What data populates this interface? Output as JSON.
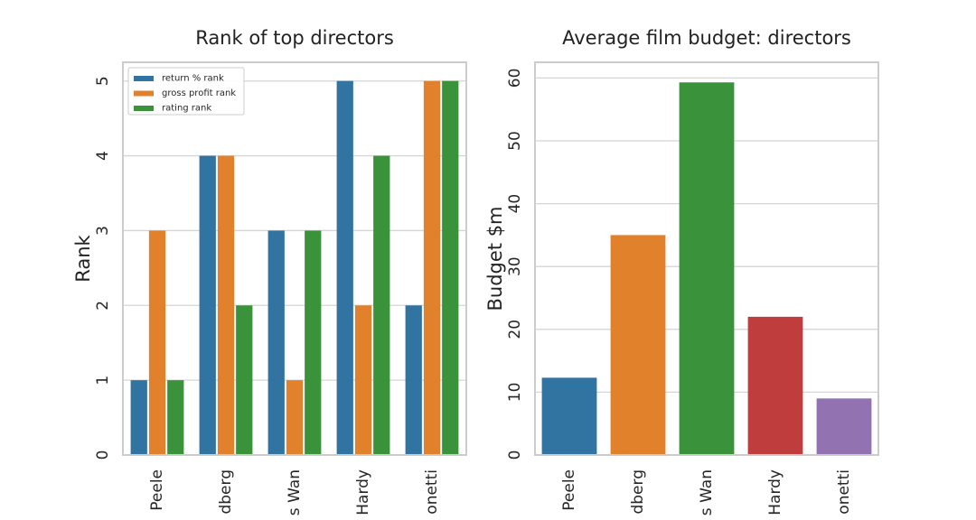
{
  "chart_data": [
    {
      "type": "bar",
      "title": "Rank of top directors",
      "xlabel": "",
      "ylabel": "Rank",
      "ylim": [
        0,
        5.25
      ],
      "yticks": [
        "0",
        "1",
        "2",
        "3",
        "4",
        "5"
      ],
      "categories": [
        "Peele",
        "dberg",
        "s Wan",
        "Hardy",
        "onetti"
      ],
      "series": [
        {
          "name": "return % rank",
          "color": "#3274a1",
          "values": [
            1,
            4,
            3,
            5,
            2
          ]
        },
        {
          "name": "gross profit rank",
          "color": "#e1812c",
          "values": [
            3,
            4,
            1,
            2,
            5
          ]
        },
        {
          "name": "rating rank",
          "color": "#3a923a",
          "values": [
            1,
            2,
            3,
            4,
            5
          ]
        }
      ],
      "legend": "top-left",
      "grid": true
    },
    {
      "type": "bar",
      "title": "Average film budget: directors",
      "xlabel": "",
      "ylabel": "Budget $m",
      "ylim": [
        0,
        62.5
      ],
      "yticks": [
        "0",
        "10",
        "20",
        "30",
        "40",
        "50",
        "60"
      ],
      "categories": [
        "Peele",
        "dberg",
        "s Wan",
        "Hardy",
        "onetti"
      ],
      "values": [
        12.3,
        35,
        59.3,
        22,
        9
      ],
      "colors": [
        "#3274a1",
        "#e1812c",
        "#3a923a",
        "#c03d3e",
        "#9372b2"
      ],
      "grid": true
    }
  ]
}
